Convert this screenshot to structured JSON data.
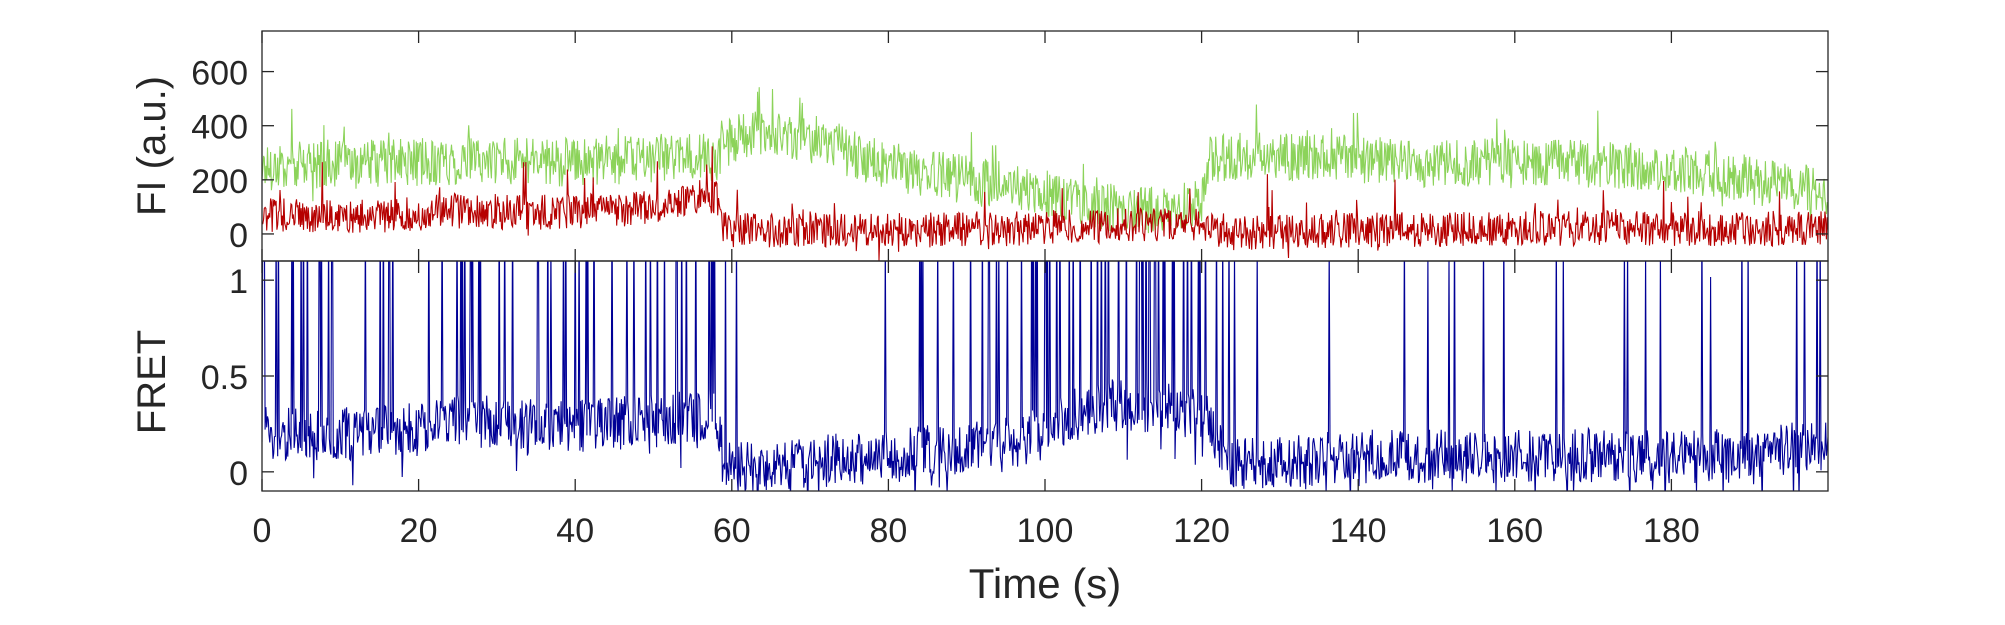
{
  "chart_data": [
    {
      "type": "line",
      "ylabel": "FI (a.u.)",
      "xlim": [
        0,
        200
      ],
      "ylim": [
        -100,
        750
      ],
      "yticks": [
        0,
        200,
        400,
        600
      ],
      "ytick_labels": [
        "0",
        "200",
        "400",
        "600"
      ],
      "grid": false,
      "legend": "none",
      "series": [
        {
          "color": "#8cd35a",
          "x": [
            0,
            4,
            8,
            12,
            16,
            20,
            24,
            28,
            32,
            36,
            40,
            44,
            48,
            52,
            56,
            58,
            60,
            64,
            68,
            72,
            76,
            80,
            84,
            88,
            92,
            96,
            100,
            104,
            108,
            112,
            116,
            120,
            121,
            124,
            128,
            132,
            136,
            140,
            144,
            148,
            152,
            156,
            160,
            164,
            168,
            172,
            176,
            180,
            184,
            188,
            192,
            196,
            200
          ],
          "values": [
            250,
            250,
            260,
            255,
            265,
            265,
            265,
            270,
            270,
            265,
            265,
            270,
            275,
            285,
            285,
            280,
            350,
            370,
            360,
            340,
            290,
            250,
            230,
            210,
            190,
            170,
            150,
            120,
            100,
            90,
            90,
            110,
            280,
            285,
            285,
            285,
            285,
            270,
            270,
            260,
            260,
            270,
            265,
            265,
            260,
            255,
            250,
            240,
            230,
            210,
            190,
            170,
            160
          ]
        },
        {
          "color": "#b60000",
          "x": [
            0,
            4,
            8,
            12,
            16,
            20,
            24,
            28,
            32,
            36,
            40,
            44,
            48,
            52,
            56,
            58,
            59,
            60,
            64,
            68,
            72,
            76,
            80,
            84,
            88,
            92,
            96,
            100,
            104,
            108,
            112,
            116,
            120,
            124,
            128,
            132,
            136,
            140,
            144,
            148,
            152,
            156,
            160,
            164,
            168,
            172,
            176,
            180,
            184,
            188,
            192,
            196,
            200
          ],
          "values": [
            70,
            70,
            60,
            65,
            70,
            75,
            85,
            85,
            80,
            80,
            85,
            90,
            95,
            110,
            140,
            130,
            20,
            10,
            15,
            15,
            15,
            15,
            15,
            15,
            15,
            20,
            20,
            25,
            25,
            30,
            30,
            35,
            30,
            5,
            5,
            10,
            10,
            15,
            15,
            15,
            20,
            20,
            20,
            20,
            20,
            20,
            20,
            20,
            20,
            20,
            20,
            20,
            20
          ]
        }
      ]
    },
    {
      "type": "line",
      "xlabel": "Time (s)",
      "ylabel": "FRET",
      "xlim": [
        0,
        200
      ],
      "ylim": [
        -0.1,
        1.1
      ],
      "xticks": [
        0,
        20,
        40,
        60,
        80,
        100,
        120,
        140,
        160,
        180
      ],
      "xtick_labels": [
        "0",
        "20",
        "40",
        "60",
        "80",
        "100",
        "120",
        "140",
        "160",
        "180"
      ],
      "yticks": [
        0,
        0.5,
        1
      ],
      "ytick_labels": [
        "0",
        "0.5",
        "1"
      ],
      "grid": false,
      "legend": "none",
      "series": [
        {
          "color": "#000096",
          "x": [
            0,
            4,
            8,
            12,
            16,
            20,
            24,
            28,
            32,
            36,
            40,
            44,
            48,
            52,
            56,
            58,
            59,
            60,
            64,
            68,
            72,
            76,
            80,
            84,
            88,
            92,
            96,
            100,
            104,
            108,
            112,
            116,
            120,
            124,
            128,
            132,
            136,
            140,
            144,
            148,
            152,
            156,
            160,
            164,
            168,
            172,
            176,
            180,
            184,
            188,
            192,
            196,
            200
          ],
          "values": [
            0.22,
            0.2,
            0.2,
            0.2,
            0.22,
            0.22,
            0.26,
            0.26,
            0.25,
            0.23,
            0.24,
            0.25,
            0.26,
            0.27,
            0.3,
            0.3,
            0.03,
            0.03,
            0.04,
            0.04,
            0.06,
            0.06,
            0.08,
            0.1,
            0.12,
            0.14,
            0.16,
            0.2,
            0.3,
            0.35,
            0.35,
            0.33,
            0.3,
            0.05,
            0.05,
            0.06,
            0.07,
            0.08,
            0.08,
            0.08,
            0.08,
            0.08,
            0.08,
            0.09,
            0.09,
            0.08,
            0.08,
            0.08,
            0.08,
            0.1,
            0.1,
            0.12,
            0.12
          ]
        }
      ]
    }
  ]
}
